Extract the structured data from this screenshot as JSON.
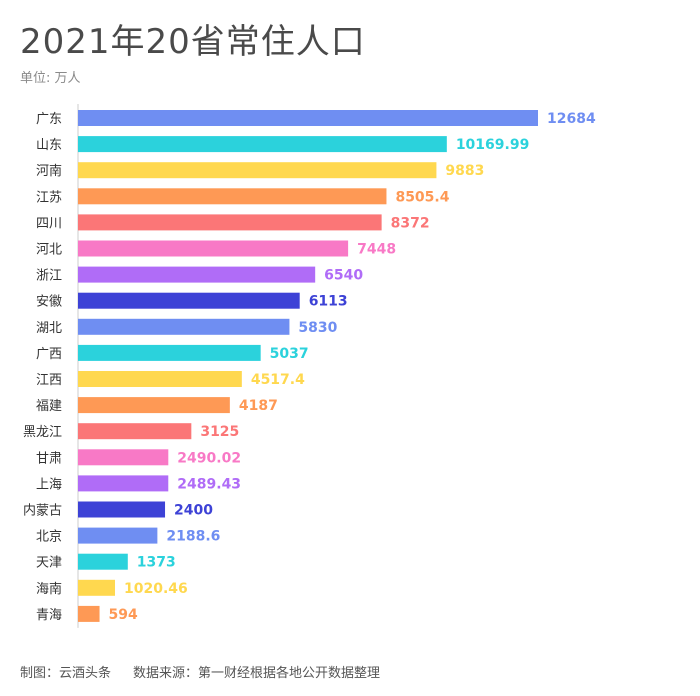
{
  "title": "2021年20省常住人口",
  "unit_label": "单位: 万人",
  "footer": {
    "credit": "制图：云酒头条",
    "source": "数据来源：第一财经根据各地公开数据整理"
  },
  "palette": [
    "#6f8ef2",
    "#2bd2dc",
    "#ffd84f",
    "#fe9955",
    "#fb7677",
    "#f879c6",
    "#b06cf7",
    "#3d42d6"
  ],
  "chart_data": {
    "type": "bar",
    "orientation": "horizontal",
    "title": "2021年20省常住人口",
    "xlabel": "",
    "ylabel": "",
    "unit": "万人",
    "xlim": [
      0,
      13500
    ],
    "grid": false,
    "categories": [
      "广东",
      "山东",
      "河南",
      "江苏",
      "四川",
      "河北",
      "浙江",
      "安徽",
      "湖北",
      "广西",
      "江西",
      "福建",
      "黑龙江",
      "甘肃",
      "上海",
      "内蒙古",
      "北京",
      "天津",
      "海南",
      "青海"
    ],
    "values": [
      12684,
      10169.99,
      9883,
      8505.4,
      8372,
      7448,
      6540,
      6113,
      5830,
      5037,
      4517.4,
      4187,
      3125,
      2490.02,
      2489.43,
      2400,
      2188.6,
      1373,
      1020.46,
      594
    ],
    "value_labels": [
      "12684",
      "10169.99",
      "9883",
      "8505.4",
      "8372",
      "7448",
      "6540",
      "6113",
      "5830",
      "5037",
      "4517.4",
      "4187",
      "3125",
      "2490.02",
      "2489.43",
      "2400",
      "2188.6",
      "1373",
      "1020.46",
      "594"
    ]
  }
}
